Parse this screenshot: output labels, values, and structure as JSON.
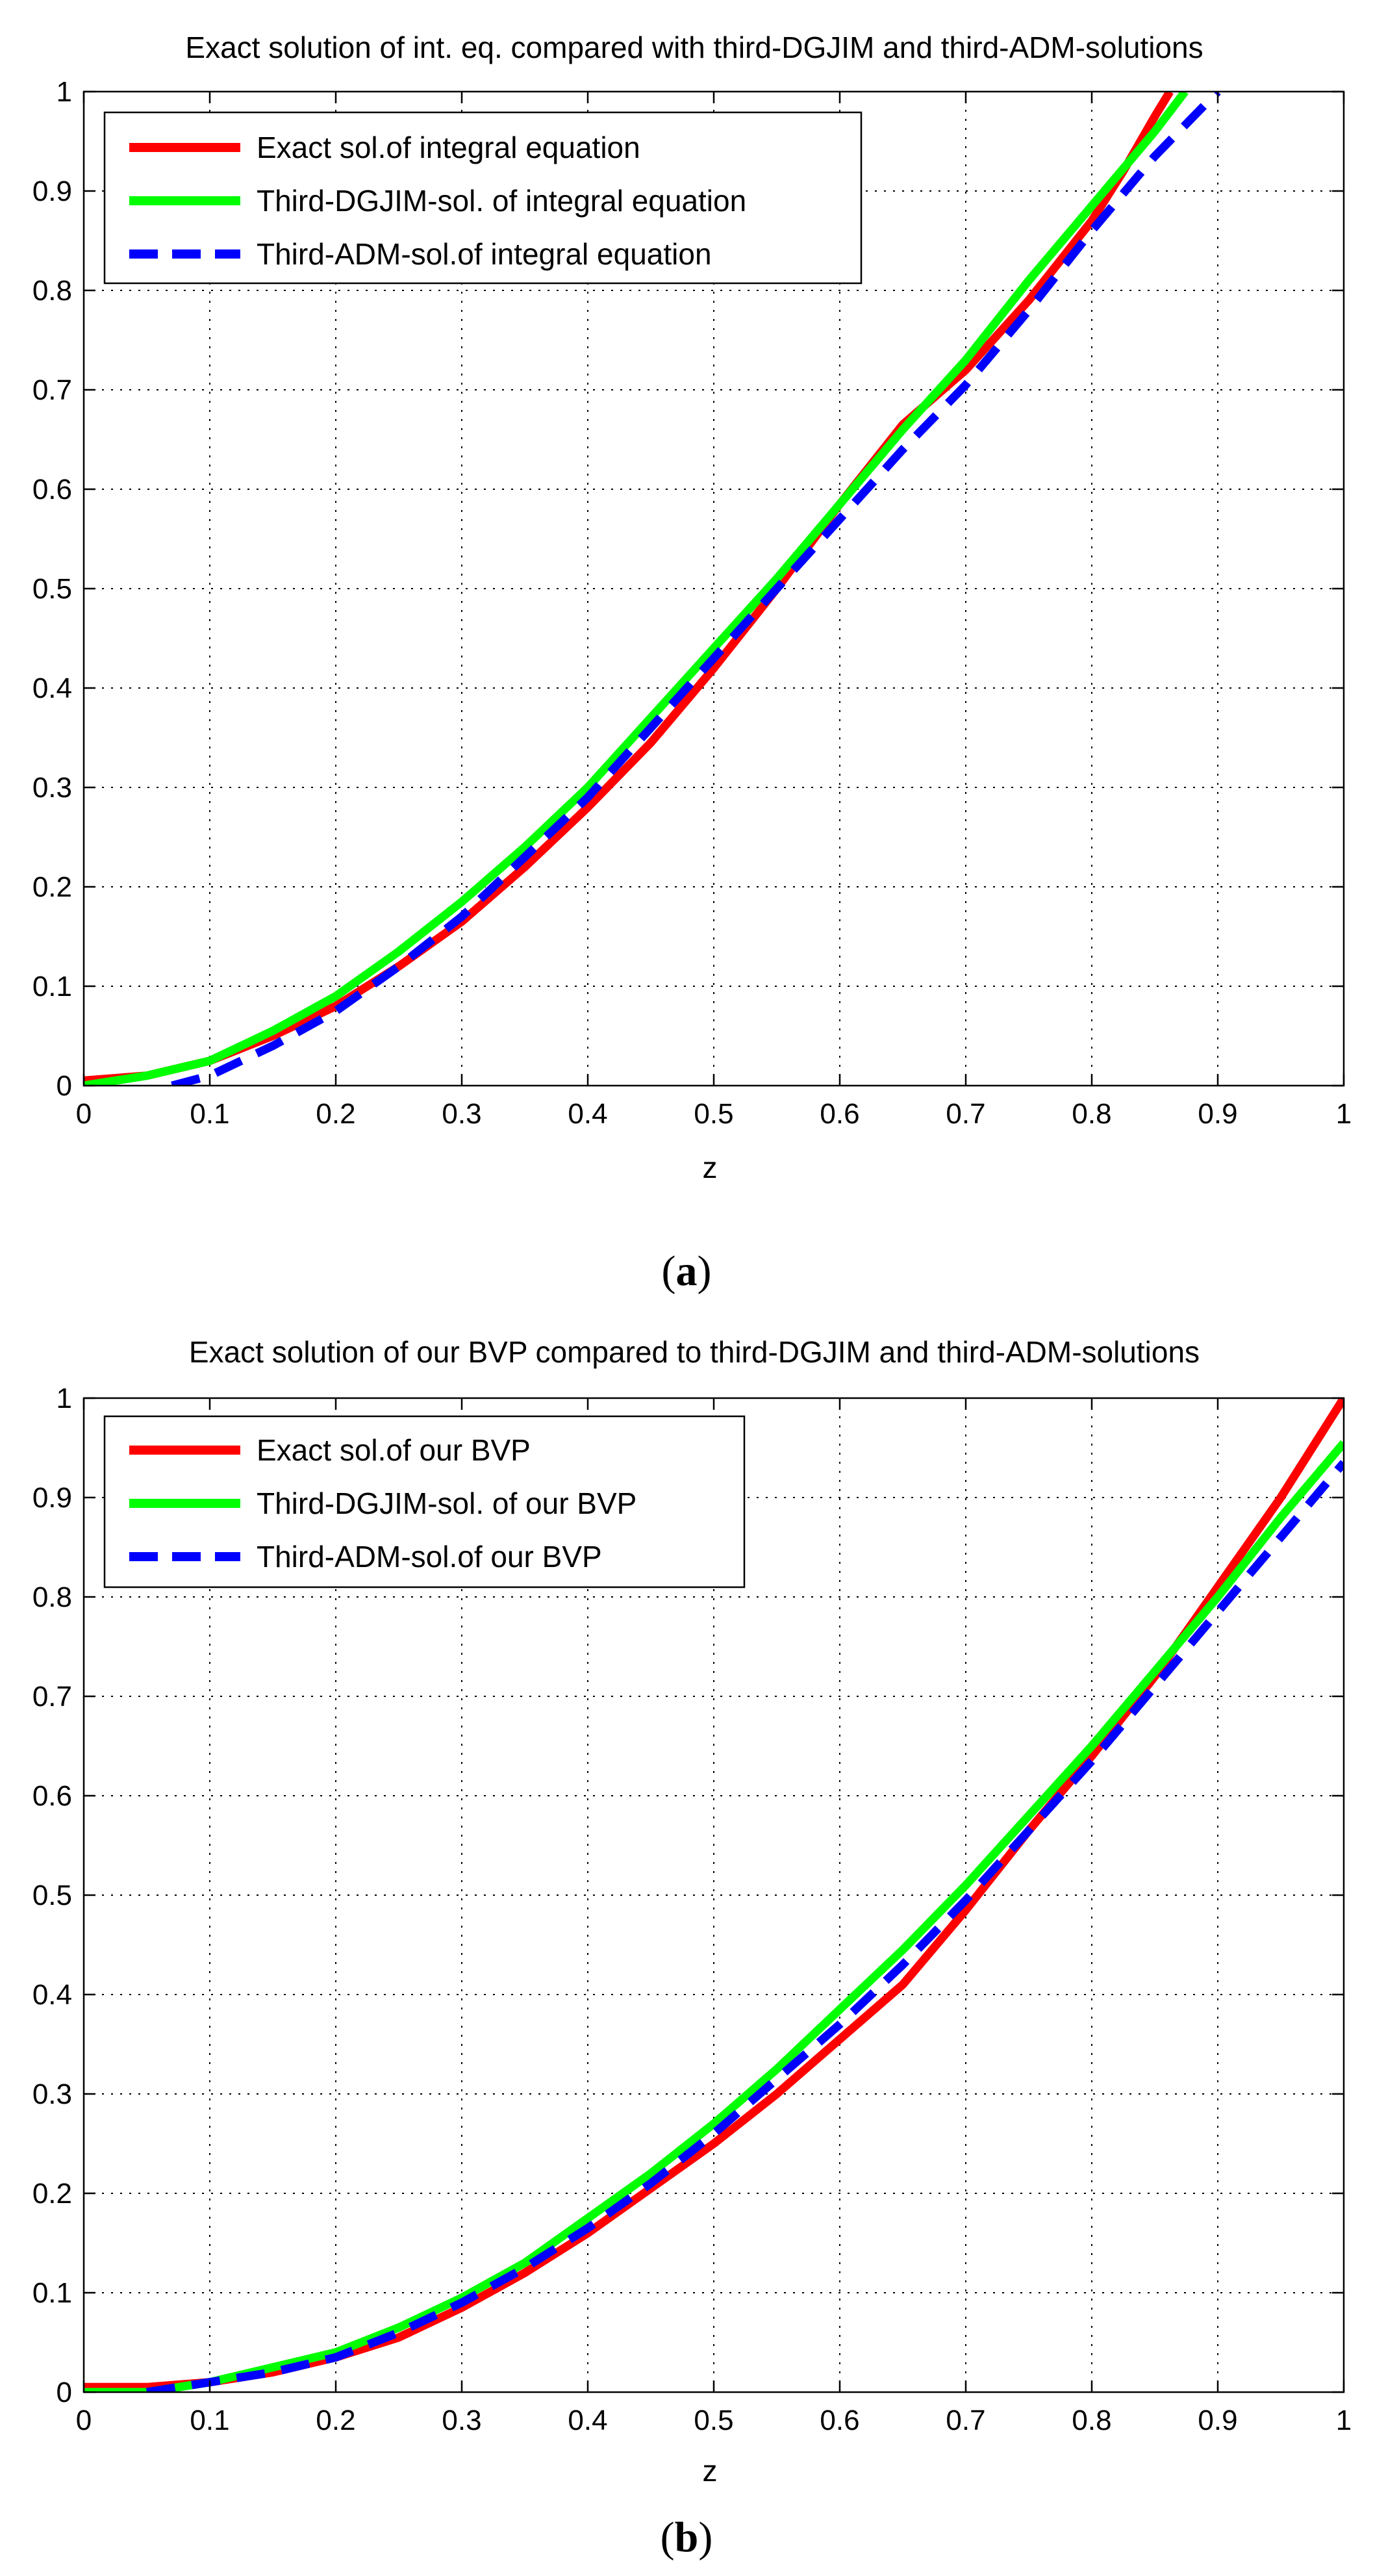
{
  "colors": {
    "exact": "#ff0000",
    "dgjim": "#00ff00",
    "adm": "#0000ff"
  },
  "chart_data": [
    {
      "type": "line",
      "title": "Exact solution of int. eq. compared with third-DGJIM and third-ADM-solutions",
      "xlabel": "z",
      "ylabel": "",
      "xlim": [
        0,
        1
      ],
      "ylim": [
        0,
        1
      ],
      "xticks": [
        "0",
        "0.1",
        "0.2",
        "0.3",
        "0.4",
        "0.5",
        "0.6",
        "0.7",
        "0.8",
        "0.9",
        "1"
      ],
      "yticks": [
        "0",
        "0.1",
        "0.2",
        "0.3",
        "0.4",
        "0.5",
        "0.6",
        "0.7",
        "0.8",
        "0.9",
        "1"
      ],
      "grid": true,
      "legend_position": "top-left",
      "caption": "(a)",
      "caption_letter": "a",
      "series": [
        {
          "name": "Exact sol.of integral equation",
          "color": "#ff0000",
          "style": "solid",
          "x": [
            0,
            0.05,
            0.1,
            0.15,
            0.2,
            0.25,
            0.3,
            0.35,
            0.4,
            0.45,
            0.5,
            0.55,
            0.6,
            0.65,
            0.7,
            0.75,
            0.8,
            0.825,
            0.85,
            0.862
          ],
          "y": [
            0.005,
            0.01,
            0.025,
            0.05,
            0.08,
            0.12,
            0.165,
            0.22,
            0.28,
            0.345,
            0.42,
            0.5,
            0.585,
            0.665,
            0.72,
            0.79,
            0.87,
            0.92,
            0.975,
            1.0
          ]
        },
        {
          "name": "Third-DGJIM-sol. of integral equation",
          "color": "#00ff00",
          "style": "solid",
          "x": [
            0,
            0.05,
            0.1,
            0.15,
            0.2,
            0.25,
            0.3,
            0.35,
            0.4,
            0.45,
            0.5,
            0.55,
            0.6,
            0.65,
            0.7,
            0.75,
            0.8,
            0.85,
            0.874
          ],
          "y": [
            0.0,
            0.01,
            0.025,
            0.055,
            0.09,
            0.135,
            0.185,
            0.24,
            0.3,
            0.37,
            0.44,
            0.51,
            0.585,
            0.66,
            0.73,
            0.81,
            0.885,
            0.96,
            1.0
          ]
        },
        {
          "name": "Third-ADM-sol.of integral equation",
          "color": "#0000ff",
          "style": "dashed",
          "x": [
            0.07,
            0.1,
            0.15,
            0.2,
            0.25,
            0.3,
            0.35,
            0.4,
            0.45,
            0.5,
            0.55,
            0.6,
            0.65,
            0.7,
            0.75,
            0.8,
            0.85,
            0.9
          ],
          "y": [
            0.0,
            0.01,
            0.04,
            0.075,
            0.12,
            0.17,
            0.23,
            0.29,
            0.36,
            0.43,
            0.5,
            0.57,
            0.64,
            0.705,
            0.78,
            0.86,
            0.935,
            1.0
          ]
        }
      ]
    },
    {
      "type": "line",
      "title": "Exact solution of our BVP compared to third-DGJIM and third-ADM-solutions",
      "xlabel": "z",
      "ylabel": "",
      "xlim": [
        0,
        1
      ],
      "ylim": [
        0,
        1
      ],
      "xticks": [
        "0",
        "0.1",
        "0.2",
        "0.3",
        "0.4",
        "0.5",
        "0.6",
        "0.7",
        "0.8",
        "0.9",
        "1"
      ],
      "yticks": [
        "0",
        "0.1",
        "0.2",
        "0.3",
        "0.4",
        "0.5",
        "0.6",
        "0.7",
        "0.8",
        "0.9",
        "1"
      ],
      "grid": true,
      "legend_position": "top-left",
      "caption": "(b)",
      "caption_letter": "b",
      "series": [
        {
          "name": "Exact sol.of our BVP",
          "color": "#ff0000",
          "style": "solid",
          "x": [
            0,
            0.05,
            0.1,
            0.15,
            0.2,
            0.25,
            0.3,
            0.35,
            0.4,
            0.45,
            0.5,
            0.55,
            0.6,
            0.65,
            0.7,
            0.75,
            0.8,
            0.85,
            0.9,
            0.95,
            1.0
          ],
          "y": [
            0.005,
            0.005,
            0.01,
            0.02,
            0.035,
            0.055,
            0.085,
            0.12,
            0.16,
            0.205,
            0.25,
            0.3,
            0.355,
            0.41,
            0.485,
            0.565,
            0.64,
            0.72,
            0.81,
            0.9,
            1.0
          ]
        },
        {
          "name": "Third-DGJIM-sol. of our BVP",
          "color": "#00ff00",
          "style": "solid",
          "x": [
            0,
            0.05,
            0.1,
            0.15,
            0.2,
            0.25,
            0.3,
            0.35,
            0.4,
            0.45,
            0.5,
            0.55,
            0.6,
            0.65,
            0.7,
            0.75,
            0.8,
            0.85,
            0.9,
            0.95,
            1.0
          ],
          "y": [
            0.0,
            0.0,
            0.01,
            0.025,
            0.04,
            0.065,
            0.095,
            0.13,
            0.175,
            0.22,
            0.27,
            0.325,
            0.385,
            0.445,
            0.51,
            0.58,
            0.65,
            0.725,
            0.8,
            0.88,
            0.955
          ]
        },
        {
          "name": "Third-ADM-sol.of our BVP",
          "color": "#0000ff",
          "style": "dashed",
          "x": [
            0.05,
            0.1,
            0.15,
            0.2,
            0.25,
            0.3,
            0.35,
            0.4,
            0.45,
            0.5,
            0.55,
            0.6,
            0.65,
            0.7,
            0.75,
            0.8,
            0.85,
            0.9,
            0.95,
            1.0
          ],
          "y": [
            0.0,
            0.01,
            0.02,
            0.035,
            0.06,
            0.09,
            0.125,
            0.165,
            0.21,
            0.26,
            0.315,
            0.37,
            0.43,
            0.495,
            0.565,
            0.635,
            0.71,
            0.785,
            0.86,
            0.935
          ]
        }
      ]
    }
  ]
}
